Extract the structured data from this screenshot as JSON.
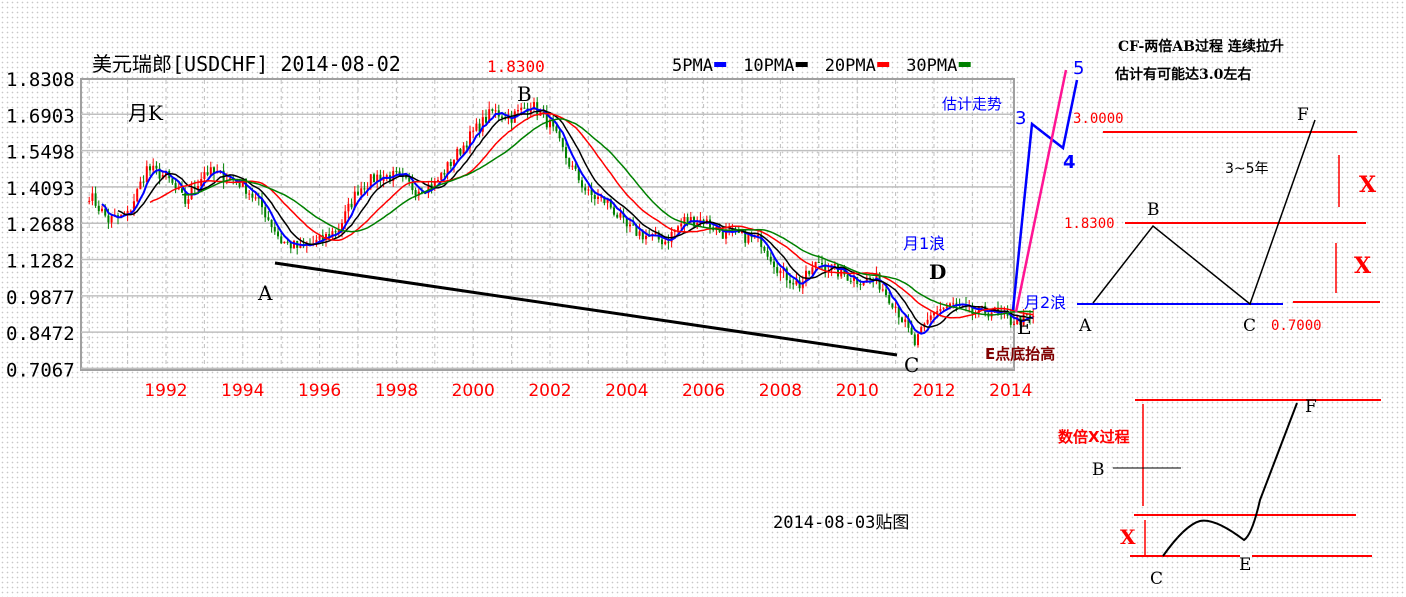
{
  "header": {
    "title": "美元瑞郎[USDCHF] 2014-08-02",
    "peak_label": "1.8300"
  },
  "legend": [
    {
      "label": "5PMA",
      "color": "#0000ff"
    },
    {
      "label": "10PMA",
      "color": "#000000"
    },
    {
      "label": "20PMA",
      "color": "#ff0000"
    },
    {
      "label": "30PMA",
      "color": "#008000"
    }
  ],
  "chart_data": {
    "type": "candlestick",
    "title": "美元瑞郎[USDCHF] 2014-08-02",
    "period_label": "月K",
    "y_ticks": [
      "1.8308",
      "1.6903",
      "1.5498",
      "1.4093",
      "1.2688",
      "1.1282",
      "0.9877",
      "0.8472",
      "0.7067"
    ],
    "ylim": [
      0.7067,
      1.8308
    ],
    "x_ticks": [
      "1992",
      "1994",
      "1996",
      "1998",
      "2000",
      "2002",
      "2004",
      "2006",
      "2008",
      "2010",
      "2012",
      "2014"
    ],
    "xlim": [
      1989.8,
      2014.6
    ],
    "grid": true,
    "x": [
      1990.0,
      1990.5,
      1991.0,
      1991.5,
      1992.0,
      1992.5,
      1993.0,
      1993.5,
      1994.0,
      1994.5,
      1995.0,
      1995.5,
      1996.0,
      1996.5,
      1997.0,
      1997.5,
      1998.0,
      1998.5,
      1999.0,
      1999.5,
      2000.0,
      2000.5,
      2001.0,
      2001.5,
      2002.0,
      2002.5,
      2003.0,
      2003.5,
      2004.0,
      2004.5,
      2005.0,
      2005.5,
      2006.0,
      2006.5,
      2007.0,
      2007.5,
      2008.0,
      2008.5,
      2009.0,
      2009.5,
      2010.0,
      2010.5,
      2011.0,
      2011.5,
      2012.0,
      2012.5,
      2013.0,
      2013.5,
      2014.0,
      2014.6
    ],
    "close": [
      1.38,
      1.28,
      1.3,
      1.48,
      1.45,
      1.35,
      1.47,
      1.45,
      1.42,
      1.33,
      1.2,
      1.17,
      1.2,
      1.25,
      1.4,
      1.45,
      1.45,
      1.4,
      1.42,
      1.52,
      1.62,
      1.7,
      1.68,
      1.73,
      1.65,
      1.5,
      1.38,
      1.35,
      1.25,
      1.22,
      1.2,
      1.28,
      1.28,
      1.23,
      1.22,
      1.2,
      1.08,
      1.03,
      1.12,
      1.08,
      1.05,
      1.05,
      0.95,
      0.8,
      0.93,
      0.95,
      0.92,
      0.93,
      0.89,
      0.9
    ],
    "moving_averages": [
      "5PMA",
      "10PMA",
      "20PMA",
      "30PMA"
    ]
  },
  "annotations": {
    "A": "A",
    "B": "B",
    "C": "C",
    "D": "D",
    "E": "E",
    "wave1": "月1浪",
    "wave2": "月2浪",
    "forecast": "估计走势",
    "w3": "3",
    "w4": "4",
    "w5": "5",
    "e_higher": "E点底抬高",
    "posted": "2014-08-03贴图"
  },
  "diagram1": {
    "line1": "CF-两倍AB过程  连续拉升",
    "line2": "估计有可能达3.0左右",
    "level_top": "3.0000",
    "level_mid": "1.8300",
    "level_low": "0.7000",
    "years": "3~5年",
    "x1": "X",
    "x2": "X",
    "A": "A",
    "B": "B",
    "C": "C",
    "F": "F"
  },
  "diagram2": {
    "title": "数倍X过程",
    "x": "X",
    "B": "B",
    "C": "C",
    "E": "E",
    "F": "F"
  }
}
